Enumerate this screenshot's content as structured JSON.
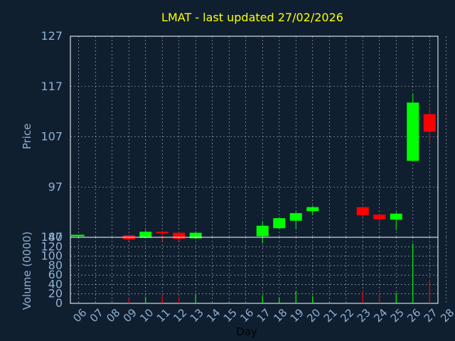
{
  "chart_data": {
    "type": "candlestick",
    "title": "LMAT - last updated 27/02/2026",
    "xlabel": "Day",
    "days": [
      "06",
      "07",
      "08",
      "09",
      "10",
      "11",
      "12",
      "13",
      "14",
      "15",
      "16",
      "17",
      "18",
      "19",
      "20",
      "21",
      "22",
      "23",
      "24",
      "25",
      "26",
      "27",
      "28"
    ],
    "price": {
      "ylabel": "Price",
      "ylim": [
        87,
        127
      ],
      "yticks": [
        87,
        97,
        107,
        117,
        127
      ],
      "candles": [
        {
          "day": "06",
          "open": 87.2,
          "high": 87.5,
          "low": 87.0,
          "close": 87.5
        },
        {
          "day": "09",
          "open": 87.4,
          "high": 87.6,
          "low": 86.0,
          "close": 86.6
        },
        {
          "day": "10",
          "open": 86.9,
          "high": 88.5,
          "low": 86.9,
          "close": 88.1
        },
        {
          "day": "11",
          "open": 88.1,
          "high": 88.3,
          "low": 86.2,
          "close": 87.8
        },
        {
          "day": "12",
          "open": 87.9,
          "high": 88.0,
          "low": 86.2,
          "close": 86.7
        },
        {
          "day": "13",
          "open": 86.8,
          "high": 88.2,
          "low": 86.6,
          "close": 87.9
        },
        {
          "day": "17",
          "open": 87.2,
          "high": 90.0,
          "low": 85.8,
          "close": 89.3
        },
        {
          "day": "18",
          "open": 88.8,
          "high": 91.0,
          "low": 88.6,
          "close": 90.8
        },
        {
          "day": "19",
          "open": 90.3,
          "high": 92.0,
          "low": 88.6,
          "close": 91.8
        },
        {
          "day": "20",
          "open": 92.2,
          "high": 93.3,
          "low": 91.4,
          "close": 93.0
        },
        {
          "day": "23",
          "open": 93.0,
          "high": 93.0,
          "low": 90.9,
          "close": 91.4
        },
        {
          "day": "24",
          "open": 91.5,
          "high": 91.5,
          "low": 89.5,
          "close": 90.6
        },
        {
          "day": "25",
          "open": 90.5,
          "high": 92.0,
          "low": 88.4,
          "close": 91.7
        },
        {
          "day": "26",
          "open": 102.2,
          "high": 115.5,
          "low": 102.2,
          "close": 113.8
        },
        {
          "day": "27",
          "open": 111.5,
          "high": 113.0,
          "low": 105.7,
          "close": 108.0
        }
      ]
    },
    "volume": {
      "ylabel": "Volume (0000)",
      "ylim": [
        0,
        140
      ],
      "yticks": [
        0,
        20,
        40,
        60,
        80,
        100,
        120,
        140
      ],
      "bars": [
        {
          "day": "09",
          "value": 10,
          "color": "red"
        },
        {
          "day": "10",
          "value": 14,
          "color": "green"
        },
        {
          "day": "11",
          "value": 15,
          "color": "red"
        },
        {
          "day": "12",
          "value": 14,
          "color": "red"
        },
        {
          "day": "13",
          "value": 18,
          "color": "green"
        },
        {
          "day": "17",
          "value": 16,
          "color": "green"
        },
        {
          "day": "18",
          "value": 13,
          "color": "green"
        },
        {
          "day": "19",
          "value": 26,
          "color": "green"
        },
        {
          "day": "20",
          "value": 15,
          "color": "green"
        },
        {
          "day": "23",
          "value": 26,
          "color": "red"
        },
        {
          "day": "24",
          "value": 21,
          "color": "red"
        },
        {
          "day": "25",
          "value": 22,
          "color": "green"
        },
        {
          "day": "26",
          "value": 127,
          "color": "green"
        },
        {
          "day": "27",
          "value": 50,
          "color": "red"
        }
      ]
    },
    "grid": true,
    "colors": {
      "background": "#0f1f30",
      "title": "#ffff00",
      "axis_text": "#8fb0d0",
      "up": "#00ff00",
      "down": "#ff0000",
      "grid": "#ffffff"
    }
  }
}
